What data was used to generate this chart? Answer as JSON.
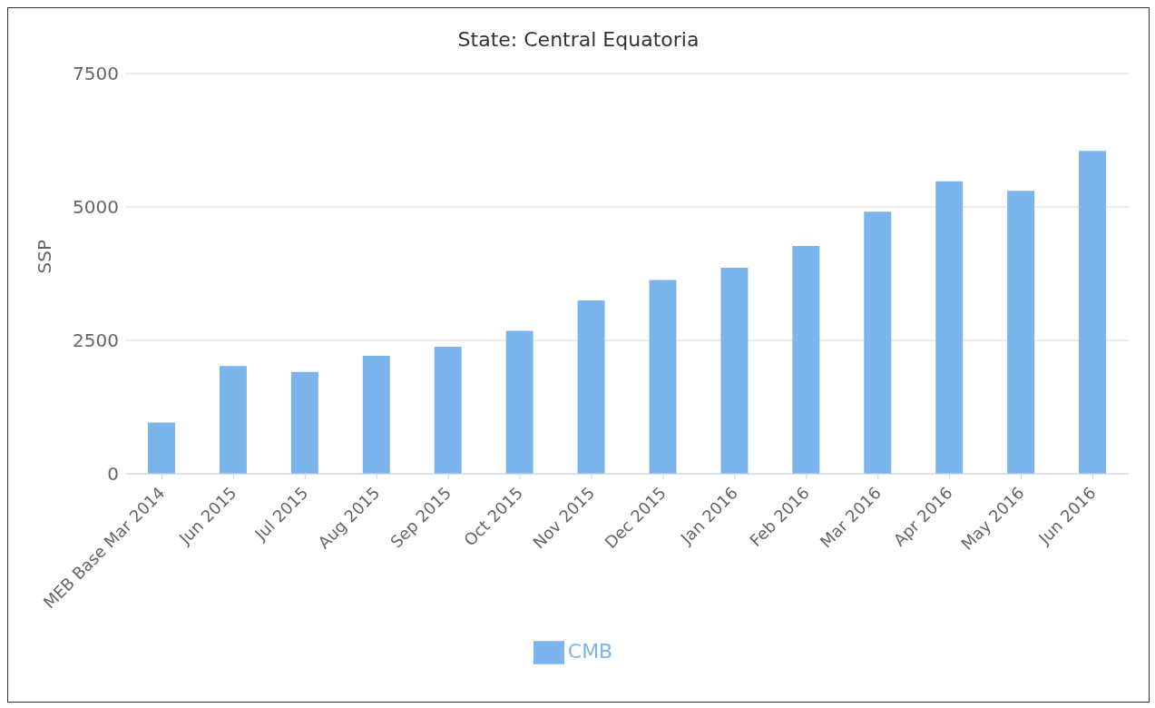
{
  "chart_data": {
    "type": "bar",
    "title": "State: Central Equatoria",
    "ylabel": "SSP",
    "categories": [
      "MEB Base Mar 2014",
      "Jun 2015",
      "Jul 2015",
      "Aug 2015",
      "Sep 2015",
      "Oct 2015",
      "Nov 2015",
      "Dec 2015",
      "Jan 2016",
      "Feb 2016",
      "Mar 2016",
      "Apr 2016",
      "May 2016",
      "Jun 2016"
    ],
    "series": [
      {
        "name": "CMB",
        "color": "#7cb5ec",
        "values": [
          960,
          2020,
          1910,
          2210,
          2380,
          2680,
          3250,
          3630,
          3860,
          4270,
          4910,
          5480,
          5300,
          6050
        ]
      }
    ],
    "ylim": [
      0,
      7500
    ],
    "yticks": [
      0,
      2500,
      5000,
      7500
    ],
    "grid": "y",
    "legend": "bottom"
  }
}
